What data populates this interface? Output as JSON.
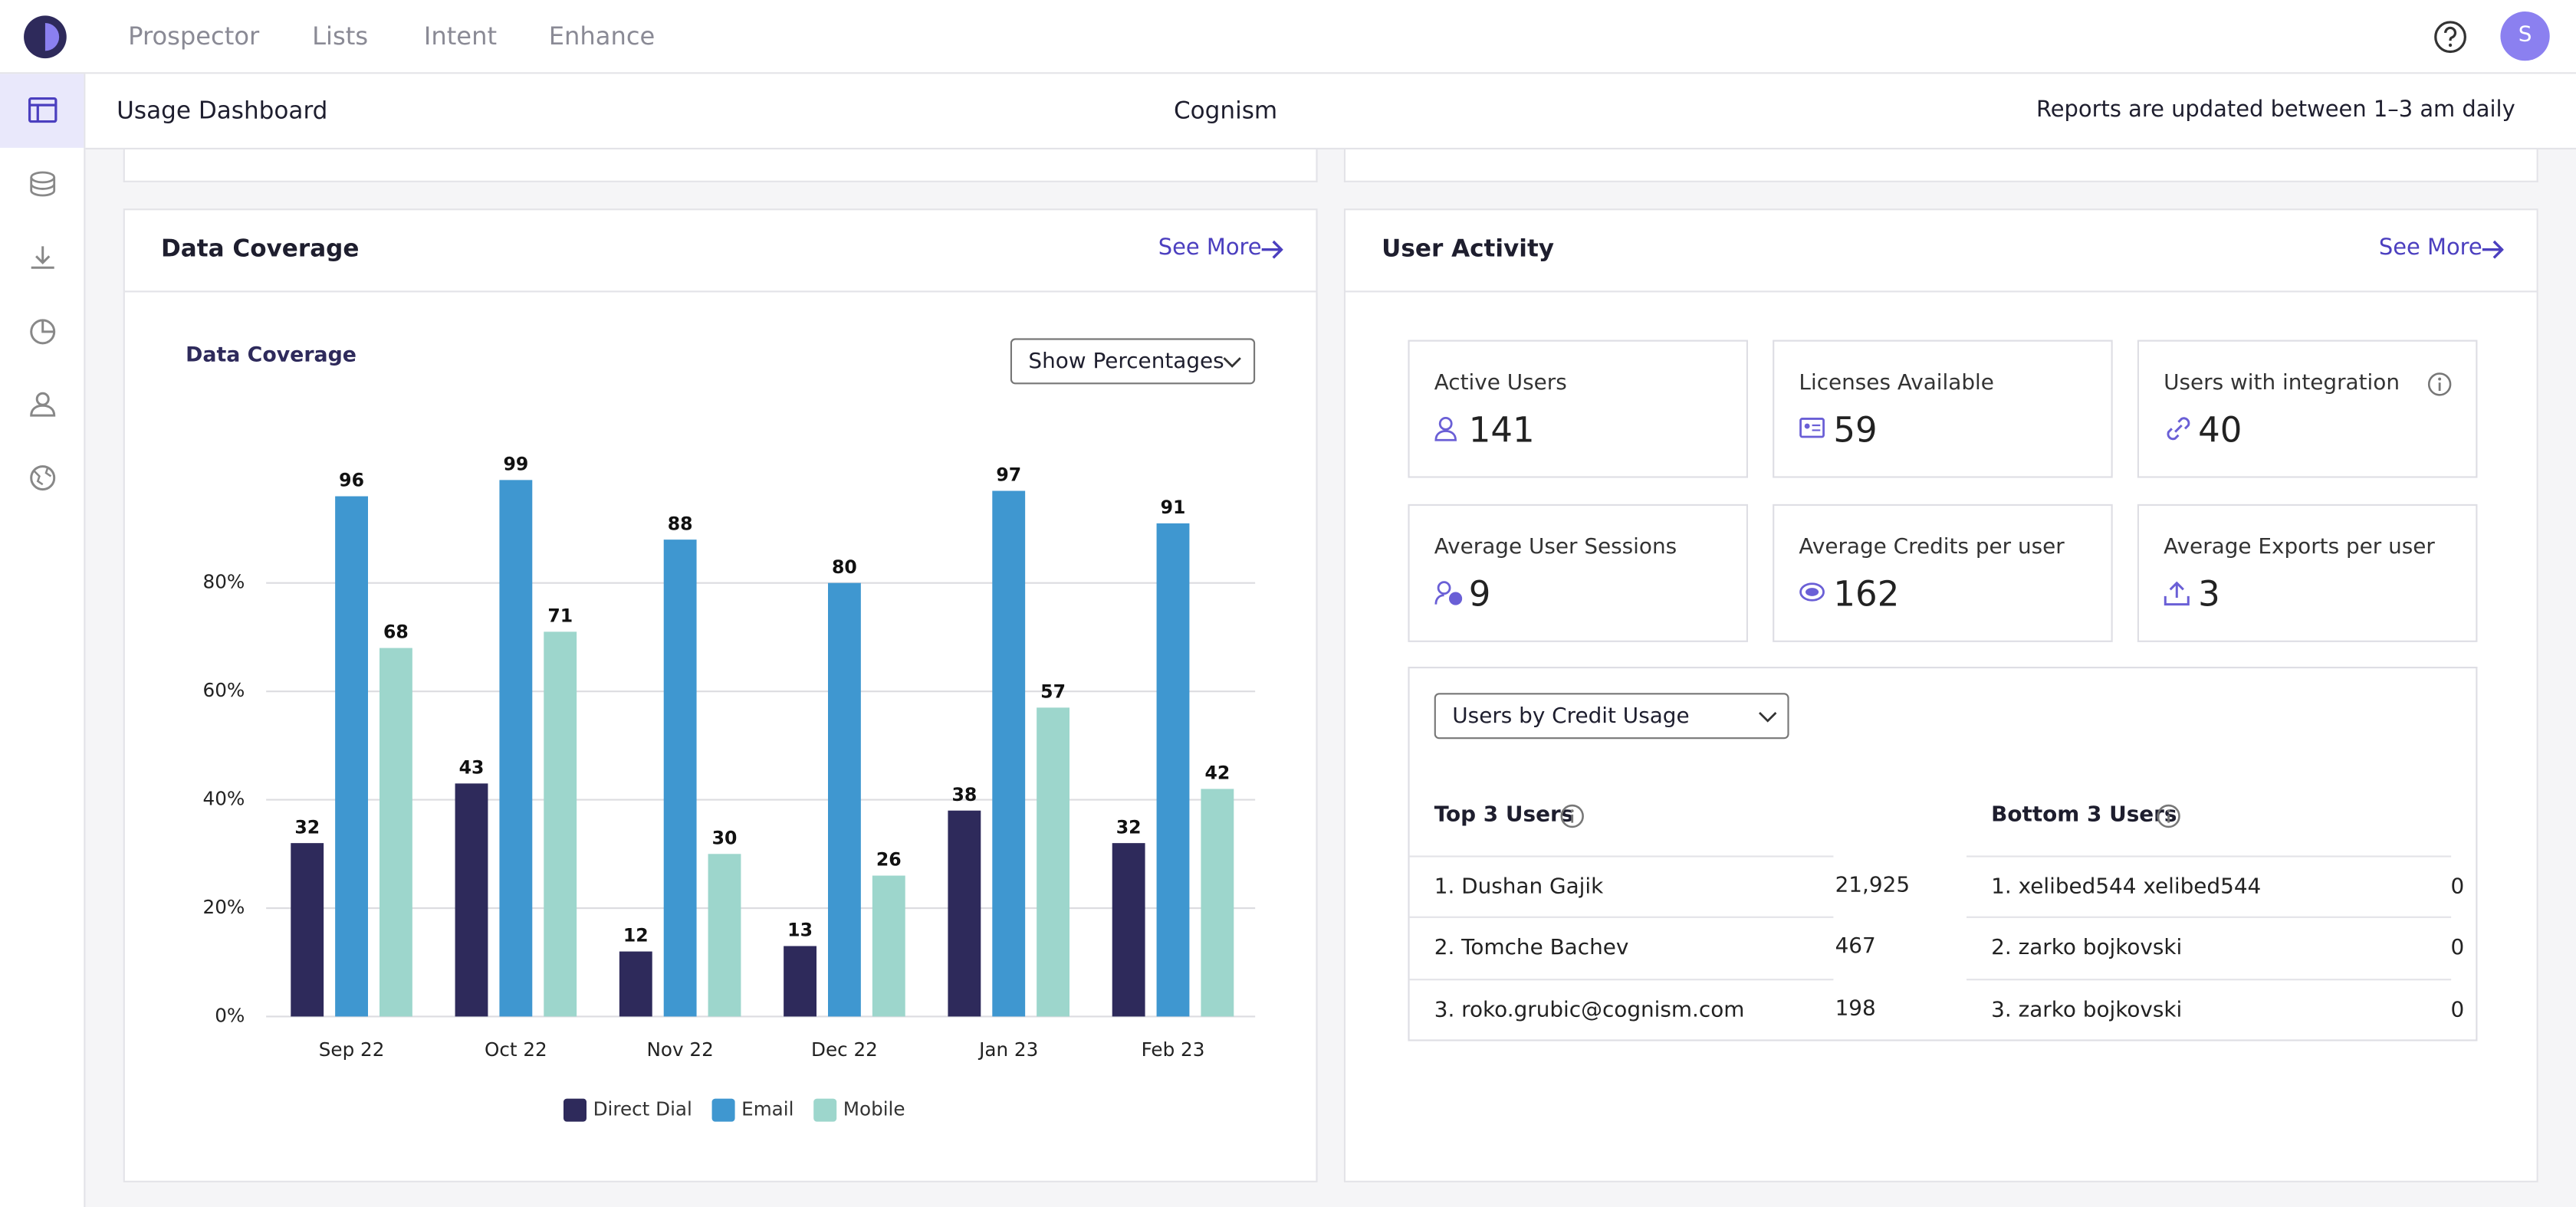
{
  "nav": {
    "items": [
      "Prospector",
      "Lists",
      "Intent",
      "Enhance"
    ],
    "avatar": "S"
  },
  "header": {
    "title": "Usage Dashboard",
    "company": "Cognism",
    "note": "Reports are updated between 1–3 am daily"
  },
  "data_coverage": {
    "title": "Data Coverage",
    "see_more": "See More",
    "dropdown": "Show Percentages"
  },
  "chart_data": {
    "type": "bar",
    "title": "Data Coverage",
    "categories": [
      "Sep 22",
      "Oct 22",
      "Nov 22",
      "Dec 22",
      "Jan 23",
      "Feb 23"
    ],
    "series": [
      {
        "name": "Direct Dial",
        "color": "#2e2a5b",
        "values": [
          32,
          43,
          12,
          13,
          38,
          32
        ]
      },
      {
        "name": "Email",
        "color": "#3f97d0",
        "values": [
          96,
          99,
          88,
          80,
          97,
          91
        ]
      },
      {
        "name": "Mobile",
        "color": "#9dd6cc",
        "values": [
          68,
          71,
          30,
          26,
          57,
          42
        ]
      }
    ],
    "ylim": [
      0,
      100
    ],
    "yticks": [
      {
        "value": 0,
        "label": "0%"
      },
      {
        "value": 20,
        "label": "20%"
      },
      {
        "value": 40,
        "label": "40%"
      },
      {
        "value": 60,
        "label": "60%"
      },
      {
        "value": 80,
        "label": "80%"
      }
    ],
    "grid": true,
    "legend": "bottom"
  },
  "user_activity": {
    "title": "User Activity",
    "see_more": "See More",
    "stats": [
      {
        "label": "Active Users",
        "value": 141
      },
      {
        "label": "Licenses Available",
        "value": 59
      },
      {
        "label": "Users with integration",
        "value": 40
      },
      {
        "label": "Average User Sessions",
        "value": 9
      },
      {
        "label": "Average Credits per user",
        "value": 162
      },
      {
        "label": "Average Exports per user",
        "value": 3
      }
    ],
    "dropdown": "Users by Credit Usage",
    "top": {
      "title": "Top 3 Users",
      "rows": [
        [
          "1. Dushan Gajik",
          "21,925"
        ],
        [
          "2. Tomche Bachev",
          "467"
        ],
        [
          "3. roko.grubic@cognism.com",
          "198"
        ]
      ]
    },
    "bottom": {
      "title": "Bottom 3 Users",
      "rows": [
        [
          "1. xelibed544 xelibed544",
          "0"
        ],
        [
          "2. zarko bojkovski",
          "0"
        ],
        [
          "3. zarko bojkovski",
          "0"
        ]
      ]
    }
  }
}
